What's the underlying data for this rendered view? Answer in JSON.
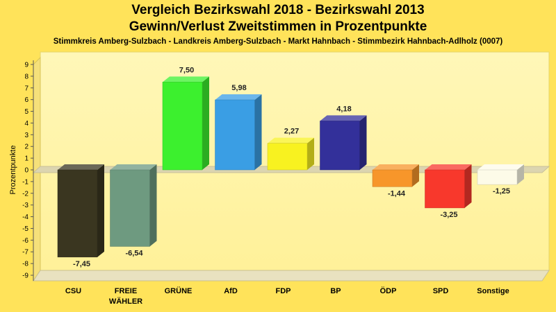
{
  "chart_data": {
    "type": "bar",
    "title": "Vergleich Bezirkswahl 2018 - Bezirkswahl 2013",
    "subtitle": "Gewinn/Verlust Zweitstimmen in Prozentpunkte",
    "subsubtitle": "Stimmkreis Amberg-Sulzbach - Landkreis Amberg-Sulzbach - Markt Hahnbach - Stimmbezirk Hahnbach-Adlholz (0007)",
    "ylabel": "Prozentpunkte",
    "xlabel": "",
    "ylim": [
      -9,
      9
    ],
    "yticks": [
      9,
      8,
      7,
      6,
      5,
      4,
      3,
      2,
      1,
      0,
      -1,
      -2,
      -3,
      -4,
      -5,
      -6,
      -7,
      -8,
      -9
    ],
    "grid": false,
    "categories": [
      {
        "label": "CSU",
        "label2": "",
        "value": -7.45,
        "value_label": "-7,45",
        "color": "#3a3620"
      },
      {
        "label": "FREIE",
        "label2": "WÄHLER",
        "value": -6.54,
        "value_label": "-6,54",
        "color": "#6e9a80"
      },
      {
        "label": "GRÜNE",
        "label2": "",
        "value": 7.5,
        "value_label": "7,50",
        "color": "#3cf02e"
      },
      {
        "label": "AfD",
        "label2": "",
        "value": 5.98,
        "value_label": "5,98",
        "color": "#3a9ee4"
      },
      {
        "label": "FDP",
        "label2": "",
        "value": 2.27,
        "value_label": "2,27",
        "color": "#f8f220"
      },
      {
        "label": "BP",
        "label2": "",
        "value": 4.18,
        "value_label": "4,18",
        "color": "#33309a"
      },
      {
        "label": "ÖDP",
        "label2": "",
        "value": -1.44,
        "value_label": "-1,44",
        "color": "#f7962a"
      },
      {
        "label": "SPD",
        "label2": "",
        "value": -3.25,
        "value_label": "-3,25",
        "color": "#f8382c"
      },
      {
        "label": "Sonstige",
        "label2": "",
        "value": -1.25,
        "value_label": "-1,25",
        "color": "#fdfbe8"
      }
    ]
  }
}
